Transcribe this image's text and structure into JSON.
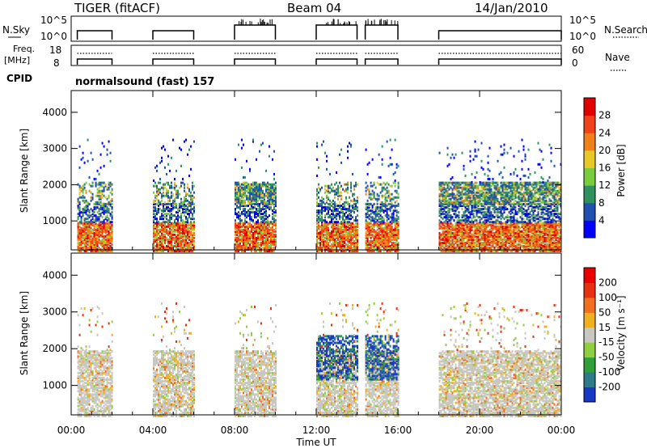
{
  "header": {
    "station": "TIGER (fitACF)",
    "beam": "Beam 04",
    "date": "14/Jan/2010"
  },
  "top_panels": {
    "nsky_label": "N.Sky",
    "nsky_ticks": [
      "10^5",
      "10^0"
    ],
    "nsearch_label": "N.Search",
    "nsearch_ticks": [
      "10^5",
      "10^0"
    ],
    "freq_label_1": "Freq.",
    "freq_label_2": "[MHz]",
    "freq_ticks": [
      "18",
      "8"
    ],
    "nave_label": "Nave",
    "nave_ticks": [
      "60",
      "0"
    ],
    "cpid_label": "CPID",
    "cpid_value": "normalsound (fast) 157"
  },
  "chart_data": [
    {
      "type": "heatmap",
      "title": "",
      "ylabel": "Slant Range [km]",
      "xlabel": "",
      "ylim": [
        200,
        4600
      ],
      "y_ticks": [
        "4000",
        "3000",
        "2000",
        "1000"
      ],
      "colorbar_label": "Power [dB]",
      "colorbar_ticks": [
        "28",
        "24",
        "20",
        "16",
        "12",
        "8",
        "4"
      ],
      "colors": [
        "#0000ff",
        "#2050b0",
        "#2f9060",
        "#7acc3c",
        "#e8c828",
        "#f08018",
        "#f04418",
        "#e00000"
      ],
      "data_segments_ut": [
        [
          0.3,
          2.0
        ],
        [
          4.0,
          6.0
        ],
        [
          8.0,
          10.0
        ],
        [
          12.0,
          14.0
        ],
        [
          14.4,
          16.0
        ],
        [
          18.0,
          24.0
        ]
      ]
    },
    {
      "type": "heatmap",
      "title": "",
      "ylabel": "Slant Range [km]",
      "xlabel": "Time UT",
      "x_ticks": [
        "00:00",
        "04:00",
        "08:00",
        "12:00",
        "16:00",
        "20:00",
        "00:00"
      ],
      "ylim": [
        200,
        4600
      ],
      "y_ticks": [
        "4000",
        "3000",
        "2000",
        "1000"
      ],
      "colorbar_label": "Velocity [m s⁻¹]",
      "colorbar_ticks": [
        "200",
        "100",
        "50",
        "15",
        "-15",
        "-50",
        "-100",
        "-200"
      ],
      "colors": [
        "#1838c8",
        "#2f7a8a",
        "#2fa038",
        "#90d040",
        "#c8c8c0",
        "#f0b020",
        "#f07020",
        "#e83010",
        "#e80000"
      ],
      "data_segments_ut": [
        [
          0.3,
          2.0
        ],
        [
          4.0,
          6.0
        ],
        [
          8.0,
          10.0
        ],
        [
          12.0,
          14.0
        ],
        [
          14.4,
          16.0
        ],
        [
          18.0,
          24.0
        ]
      ]
    }
  ]
}
